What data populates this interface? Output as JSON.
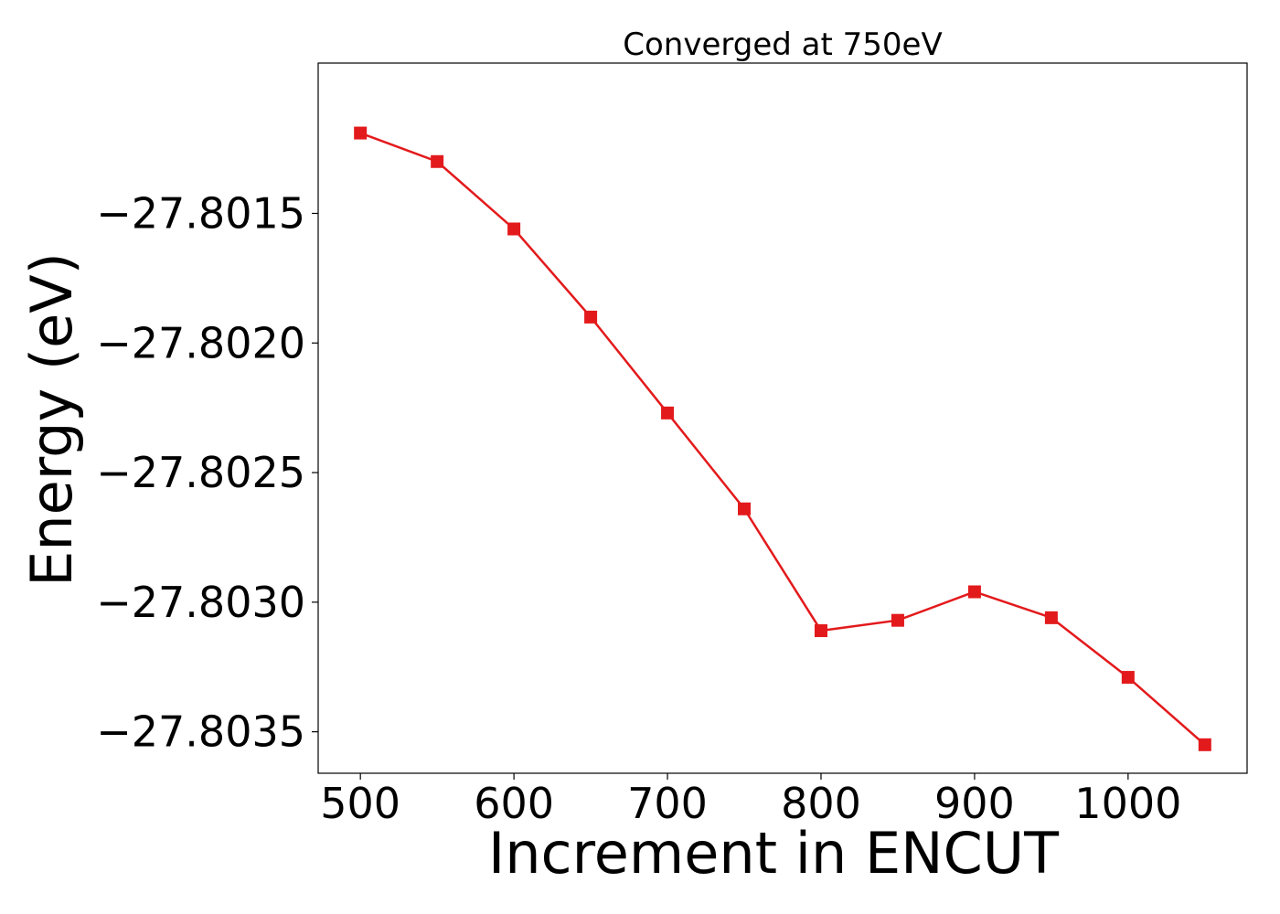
{
  "chart_data": {
    "type": "line",
    "title": "Converged at 750eV",
    "xlabel": "Increment in ENCUT",
    "ylabel": "Energy (eV)",
    "xlim": [
      472.5,
      1077.5
    ],
    "ylim": [
      -27.80366,
      -27.80092
    ],
    "xticks": [
      500,
      600,
      700,
      800,
      900,
      1000
    ],
    "xtick_labels": [
      "500",
      "600",
      "700",
      "800",
      "900",
      "1000"
    ],
    "yticks": [
      -27.8015,
      -27.802,
      -27.8025,
      -27.803,
      -27.8035
    ],
    "ytick_labels": [
      "−27.8015",
      "−27.8020",
      "−27.8025",
      "−27.8030",
      "−27.8035"
    ],
    "grid": false,
    "series": [
      {
        "color": "#e31a1c",
        "marker": "square",
        "x": [
          500,
          550,
          600,
          650,
          700,
          750,
          800,
          850,
          900,
          950,
          1000,
          1050
        ],
        "y": [
          -27.80119,
          -27.8013,
          -27.80156,
          -27.8019,
          -27.80227,
          -27.80264,
          -27.80311,
          -27.80307,
          -27.80296,
          -27.80306,
          -27.80329,
          -27.80355
        ]
      }
    ]
  }
}
